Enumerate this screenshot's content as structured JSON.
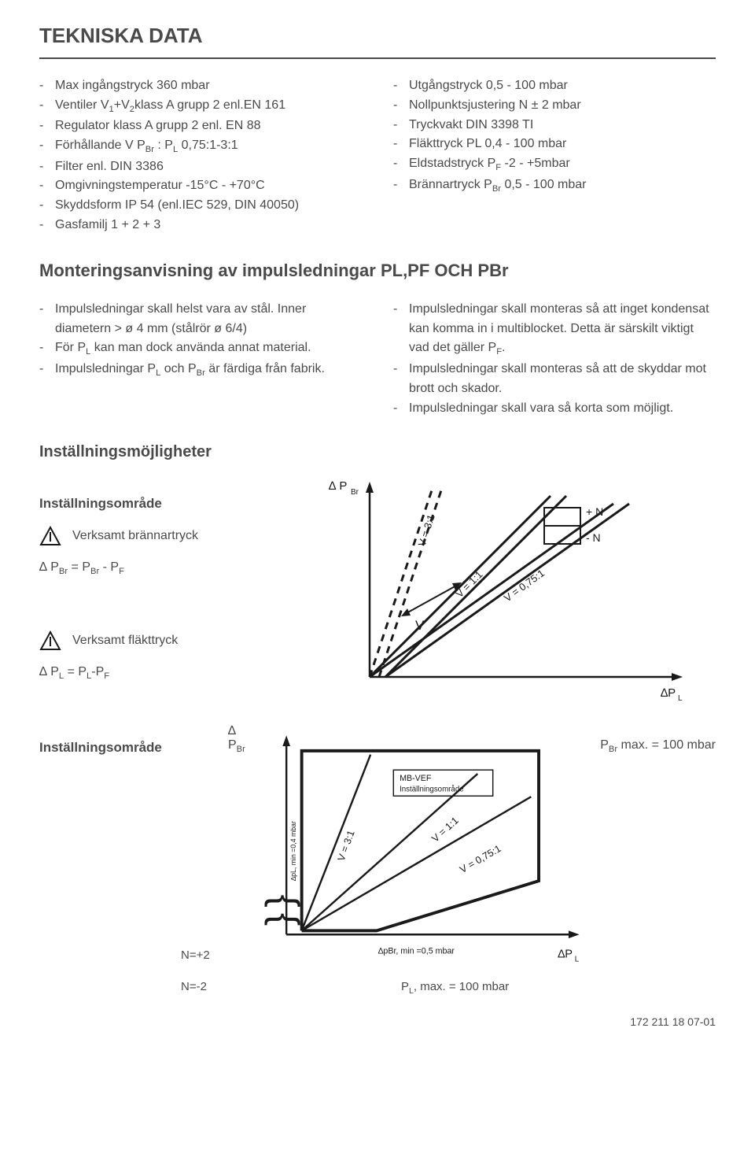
{
  "title": "TEKNISKA DATA",
  "left_specs": [
    "Max ingångstryck 360 mbar",
    "Ventiler V<sub>1</sub>+V<sub>2</sub>klass A grupp 2 enl.EN 161",
    "Regulator klass A grupp 2 enl. EN 88",
    "Förhållande V P<sub>Br</sub> : P<sub>L</sub> 0,75:1-3:1",
    "Filter enl. DIN 3386",
    "Omgivningstemperatur -15°C - +70°C",
    "Skyddsform IP 54 (enl.IEC 529, DIN 40050)",
    "Gasfamilj 1 + 2 + 3"
  ],
  "right_specs": [
    "Utgångstryck 0,5 - 100 mbar",
    "Nollpunktsjustering N ± 2 mbar",
    "Tryckvakt DIN 3398 TI",
    "Fläkttryck PL 0,4 - 100 mbar",
    "Eldstadstryck P<sub>F</sub> -2 - +5mbar",
    "Brännartryck P<sub>Br</sub> 0,5 - 100 mbar"
  ],
  "montering_title": "Monteringsanvisning av impulsledningar PL,PF OCH PBr",
  "montering_left": [
    "Impulsledningar skall helst vara av stål. Inner diametern > ø 4 mm (stålrör ø 6/4)",
    "För P<sub>L</sub> kan man dock använda annat material.",
    "Impulsledningar P<sub>L</sub> och P<sub>Br</sub> är färdiga från fabrik."
  ],
  "montering_right": [
    "Impulsledningar skall monteras så att inget kondensat kan komma in i multiblocket. Detta är särskilt viktigt vad det gäller P<sub>F</sub>.",
    "Impulsledningar skall monteras så att de skyddar mot brott och skador.",
    "Impulsledningar skall vara så korta som möjligt."
  ],
  "instmoj_title": "Inställningsmöjligheter",
  "instomrade_label": "Inställningsområde",
  "verksamt_brannar": "Verksamt brännartryck",
  "verksamt_flakt": "Verksamt fläkttryck",
  "formula1_html": "∆ P<sub>Br</sub> = P<sub>Br</sub> - P<sub>F</sub>",
  "formula2_html": "∆ P<sub>L</sub> = P<sub>L</sub>-P<sub>F</sub>",
  "chart1": {
    "y_axis_label": "∆ P<sub>Br</sub>",
    "x_axis_label": "∆P<sub>L</sub>",
    "labels": {
      "plusN": "+ N",
      "minusN": "- N",
      "v31": "V = 3:1",
      "v11": "V = 1:1",
      "v075": "V = 0,75:1",
      "arrowV": "V"
    },
    "colors": {
      "line": "#1a1a1a",
      "bg": "#ffffff"
    }
  },
  "chart2": {
    "y_axis_label": "∆ P<sub>Br</sub>",
    "right_label_html": "P<sub>Br</sub> max. = 100 mbar",
    "x_axis_label": "∆P<sub>L</sub>",
    "y_rot_label": "∆pL, min =0,4 mbar",
    "box_label_top": "MB-VEF",
    "box_label_bot": "Inställningsområde",
    "v31": "V = 3:1",
    "v11": "V = 1:1",
    "v075": "V = 0,75:1",
    "np2": "N=+2",
    "nm2": "N=-2",
    "pbr_min": "∆pBr, min =0,5 mbar",
    "pl_max_html": "P<sub>L</sub>, max. = 100 mbar",
    "colors": {
      "line": "#1a1a1a",
      "bg": "#ffffff"
    }
  },
  "footer": "172 211 18  07-01"
}
